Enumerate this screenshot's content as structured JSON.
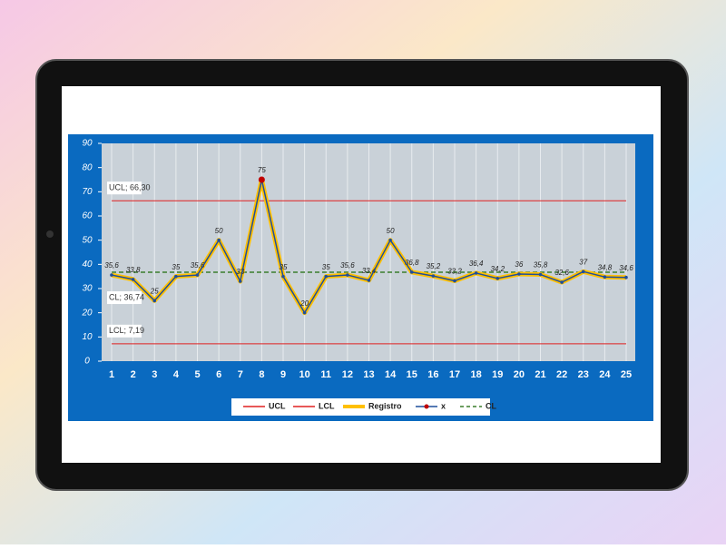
{
  "chart_data": {
    "type": "line",
    "categories": [
      1,
      2,
      3,
      4,
      5,
      6,
      7,
      8,
      9,
      10,
      11,
      12,
      13,
      14,
      15,
      16,
      17,
      18,
      19,
      20,
      21,
      22,
      23,
      24,
      25
    ],
    "ylim": [
      0,
      90
    ],
    "yticks": [
      0,
      10,
      20,
      30,
      40,
      50,
      60,
      70,
      80,
      90
    ],
    "grid": true,
    "series": [
      {
        "name": "Registro",
        "color": "#ffc000",
        "values": [
          35.6,
          33.8,
          25,
          35,
          35.6,
          50,
          33,
          75,
          35,
          20,
          35,
          35.6,
          33.4,
          50,
          36.8,
          35.2,
          33.2,
          36.4,
          34.2,
          36,
          35.8,
          32.6,
          37,
          34.8,
          34.6
        ],
        "value_labels": [
          "35,6",
          "33,8",
          "25",
          "35",
          "35,6",
          "50",
          "33",
          "75",
          "35",
          "20",
          "35",
          "35,6",
          "33,4",
          "50",
          "36,8",
          "35,2",
          "33,2",
          "36,4",
          "34,2",
          "36",
          "35,8",
          "32,6",
          "37",
          "34,8",
          "34,6"
        ]
      },
      {
        "name": "x",
        "color": "#1f4e9c",
        "marker_color": "#c00000",
        "values": [
          35.6,
          33.8,
          25,
          35,
          35.6,
          50,
          33,
          75,
          35,
          20,
          35,
          35.6,
          33.4,
          50,
          36.8,
          35.2,
          33.2,
          36.4,
          34.2,
          36,
          35.8,
          32.6,
          37,
          34.8,
          34.6
        ]
      }
    ],
    "limits": [
      {
        "name": "UCL",
        "value": 66.3,
        "label": "UCL; 66,30",
        "color": "#e02020"
      },
      {
        "name": "LCL",
        "value": 7.19,
        "label": "LCL; 7,19",
        "color": "#e02020"
      },
      {
        "name": "CL",
        "value": 36.74,
        "label": "CL; 36,74",
        "color": "#3a7d2c",
        "dashed": true
      }
    ]
  }
}
